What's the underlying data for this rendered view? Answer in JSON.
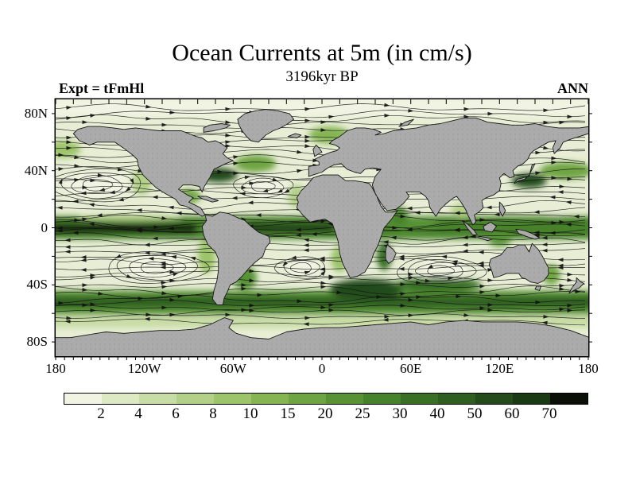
{
  "figure": {
    "title": "Ocean Currents at 5m (in cm/s)",
    "subtitle": "3196kyr BP",
    "experiment_label": "Expt = tFmHl",
    "season_label": "ANN"
  },
  "axes": {
    "lat_tick_labels": [
      "80N",
      "40N",
      "0",
      "40S",
      "80S"
    ],
    "lat_tick_values": [
      80,
      40,
      0,
      -40,
      -80
    ],
    "lon_tick_labels": [
      "180",
      "120W",
      "60W",
      "0",
      "60E",
      "120E",
      "180"
    ],
    "lon_tick_values": [
      -180,
      -120,
      -60,
      0,
      60,
      120,
      180
    ]
  },
  "colorbar": {
    "tick_labels": [
      "2",
      "4",
      "6",
      "8",
      "10",
      "15",
      "20",
      "25",
      "30",
      "40",
      "50",
      "60",
      "70"
    ],
    "colors": [
      "#f1f4e2",
      "#dde9c3",
      "#c8dca5",
      "#b2d088",
      "#9cc46b",
      "#85b553",
      "#6ea443",
      "#579335",
      "#46822c",
      "#387026",
      "#2e5e20",
      "#244c1a",
      "#1a3a13",
      "#0a0f08"
    ]
  },
  "map": {
    "land_color": "#ababab",
    "coast_color": "#151515",
    "ocean_base": "#e8eed5",
    "streamline_color": "#111111"
  },
  "chart_data": {
    "type": "heatmap",
    "title": "Ocean Currents at 5m (in cm/s)",
    "subtitle": "3196kyr BP",
    "annotations": [
      "Expt = tFmHl",
      "ANN"
    ],
    "field": "ocean current speed at 5 m depth with streamline arrows showing direction",
    "units": "cm/s",
    "projection": "equirectangular world map",
    "x_range": [
      -180,
      180
    ],
    "y_range": [
      -90,
      90
    ],
    "x_tick_labels": [
      "180",
      "120W",
      "60W",
      "0",
      "60E",
      "120E",
      "180"
    ],
    "y_tick_labels": [
      "80N",
      "40N",
      "0",
      "40S",
      "80S"
    ],
    "colorbar_bin_edges": [
      2,
      4,
      6,
      8,
      10,
      15,
      20,
      25,
      30,
      40,
      50,
      60,
      70
    ],
    "colorbar_colors": [
      "#f1f4e2",
      "#dde9c3",
      "#c8dca5",
      "#b2d088",
      "#9cc46b",
      "#85b553",
      "#6ea443",
      "#579335",
      "#46822c",
      "#387026",
      "#2e5e20",
      "#244c1a",
      "#1a3a13",
      "#0a0f08"
    ],
    "land_color": "#ababab",
    "notable_features": [
      "dark equatorial current bands",
      "Antarctic Circumpolar Current band",
      "subtropical gyre loops in each basin",
      "gray continents"
    ]
  }
}
